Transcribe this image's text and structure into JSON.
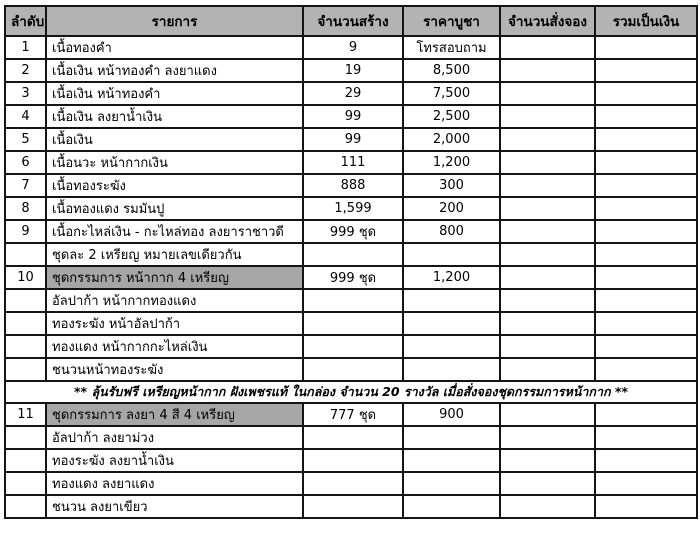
{
  "table": {
    "columns": [
      {
        "key": "no",
        "label": "ลำดับ"
      },
      {
        "key": "item",
        "label": "รายการ"
      },
      {
        "key": "qty",
        "label": "จำนวนสร้าง"
      },
      {
        "key": "price",
        "label": "ราคาบูชา"
      },
      {
        "key": "ordered",
        "label": "จำนวนสั่งจอง"
      },
      {
        "key": "total",
        "label": "รวมเป็นเงิน"
      }
    ],
    "rows": [
      {
        "no": "1",
        "item": "เนื้อทองคำ",
        "qty": "9",
        "price": "โทรสอบถาม",
        "ordered": "",
        "total": ""
      },
      {
        "no": "2",
        "item": "เนื้อเงิน หน้าทองคำ  ลงยาแดง",
        "qty": "19",
        "price": "8,500",
        "ordered": "",
        "total": ""
      },
      {
        "no": "3",
        "item": "เนื้อเงิน หน้าทองคำ",
        "qty": "29",
        "price": "7,500",
        "ordered": "",
        "total": ""
      },
      {
        "no": "4",
        "item": "เนื้อเงิน ลงยาน้ำเงิน",
        "qty": "99",
        "price": "2,500",
        "ordered": "",
        "total": ""
      },
      {
        "no": "5",
        "item": "เนื้อเงิน",
        "qty": "99",
        "price": "2,000",
        "ordered": "",
        "total": ""
      },
      {
        "no": "6",
        "item": "เนื้อนวะ หน้ากากเงิน",
        "qty": "111",
        "price": "1,200",
        "ordered": "",
        "total": ""
      },
      {
        "no": "7",
        "item": "เนื้อทองระฆัง",
        "qty": "888",
        "price": "300",
        "ordered": "",
        "total": ""
      },
      {
        "no": "8",
        "item": "เนื้อทองแดง รมมันปู",
        "qty": "1,599",
        "price": "200",
        "ordered": "",
        "total": ""
      },
      {
        "no": "9",
        "item": "เนื้อกะไหล่เงิน - กะไหล่ทอง ลงยาราชาวดี",
        "qty": "999  ชุด",
        "price": "800",
        "ordered": "",
        "total": ""
      },
      {
        "no": "",
        "item": "ชุดละ 2 เหรียญ  หมายเลขเดียวกัน",
        "qty": "",
        "price": "",
        "ordered": "",
        "total": ""
      },
      {
        "no": "10",
        "item": "ชุดกรรมการ หน้ากาก  4 เหรียญ",
        "qty": "999  ชุด",
        "price": "1,200",
        "ordered": "",
        "total": "",
        "highlight": true
      },
      {
        "no": "",
        "item": "อัลปาก้า หน้ากากทองแดง",
        "qty": "",
        "price": "",
        "ordered": "",
        "total": ""
      },
      {
        "no": "",
        "item": "ทองระฆัง หน้าอัลปาก้า",
        "qty": "",
        "price": "",
        "ordered": "",
        "total": ""
      },
      {
        "no": "",
        "item": "ทองแดง หน้ากากกะไหล่เงิน",
        "qty": "",
        "price": "",
        "ordered": "",
        "total": ""
      },
      {
        "no": "",
        "item": "ชนวนหน้าทองระฆัง",
        "qty": "",
        "price": "",
        "ordered": "",
        "total": ""
      },
      {
        "type": "banner",
        "item": "** ลุ้นรับฟรี เหรียญหน้ากาก ฝังเพชรแท้  ในกล่อง  จำนวน 20 รางวัล เมื่อสั่งจองชุดกรรมการหน้ากาก **"
      },
      {
        "no": "11",
        "item": "ชุดกรรมการ ลงยา 4 สี 4 เหรียญ",
        "qty": "777  ชุด",
        "price": "900",
        "ordered": "",
        "total": "",
        "highlight": true
      },
      {
        "no": "",
        "item": "อัลปาก้า ลงยาม่วง",
        "qty": "",
        "price": "",
        "ordered": "",
        "total": ""
      },
      {
        "no": "",
        "item": "ทองระฆัง ลงยาน้ำเงิน",
        "qty": "",
        "price": "",
        "ordered": "",
        "total": ""
      },
      {
        "no": "",
        "item": "ทองแดง ลงยาแดง",
        "qty": "",
        "price": "",
        "ordered": "",
        "total": ""
      },
      {
        "no": "",
        "item": "ชนวน ลงยาเขียว",
        "qty": "",
        "price": "",
        "ordered": "",
        "total": ""
      }
    ],
    "colors": {
      "header_bg": "#b3b3b3",
      "highlight_bg": "#a6a6a6",
      "border": "#141414",
      "page_bg": "#ffffff"
    }
  }
}
